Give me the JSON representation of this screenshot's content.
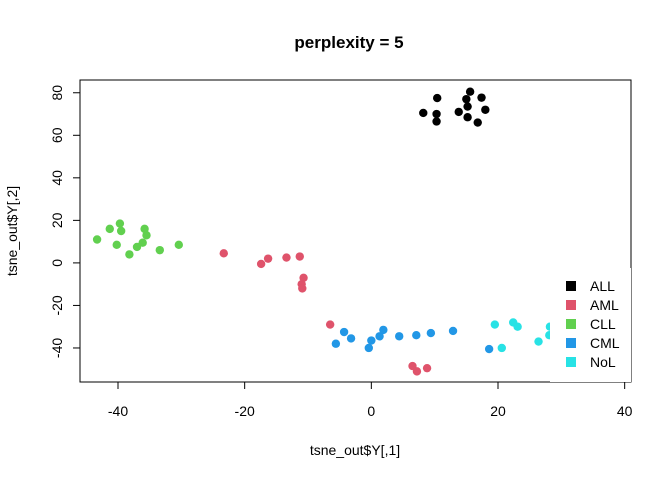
{
  "chart_data": {
    "type": "scatter",
    "title": "perplexity = 5",
    "xlabel": "tsne_out$Y[,1]",
    "ylabel": "tsne_out$Y[,2]",
    "xlim": [
      -46,
      41
    ],
    "ylim": [
      -56,
      86
    ],
    "xticks": [
      -40,
      -20,
      0,
      20,
      40
    ],
    "yticks": [
      -40,
      -20,
      0,
      20,
      40,
      60,
      80
    ],
    "grid": false,
    "legend_position": "bottom-right",
    "series": [
      {
        "name": "ALL",
        "color": "#000000",
        "points": [
          [
            8.2,
            70.5
          ],
          [
            10.4,
            77.5
          ],
          [
            10.3,
            70
          ],
          [
            10.3,
            66.5
          ],
          [
            13.8,
            71
          ],
          [
            15,
            77
          ],
          [
            15.2,
            73.5
          ],
          [
            15.6,
            80.5
          ],
          [
            15.2,
            68.5
          ],
          [
            16.8,
            66
          ],
          [
            17.4,
            77.7
          ],
          [
            18,
            72
          ]
        ]
      },
      {
        "name": "AML",
        "color": "#DF536B",
        "points": [
          [
            -23.3,
            4.5
          ],
          [
            -17.4,
            -0.5
          ],
          [
            -16.3,
            2
          ],
          [
            -13.4,
            2.5
          ],
          [
            -11.3,
            3
          ],
          [
            -10.7,
            -7
          ],
          [
            -11,
            -10
          ],
          [
            -10.9,
            -12
          ],
          [
            -6.5,
            -29
          ],
          [
            6.5,
            -48.5
          ],
          [
            7.2,
            -51
          ],
          [
            8.8,
            -49.5
          ]
        ]
      },
      {
        "name": "CLL",
        "color": "#61D04F",
        "points": [
          [
            -43.3,
            11
          ],
          [
            -41.3,
            16
          ],
          [
            -39.7,
            18.5
          ],
          [
            -39.5,
            15
          ],
          [
            -40.2,
            8.5
          ],
          [
            -38.2,
            4
          ],
          [
            -37,
            7.5
          ],
          [
            -36.1,
            9.5
          ],
          [
            -35.8,
            16
          ],
          [
            -35.5,
            13
          ],
          [
            -33.4,
            6
          ],
          [
            -30.4,
            8.5
          ]
        ]
      },
      {
        "name": "CML",
        "color": "#2297E6",
        "points": [
          [
            -5.6,
            -38
          ],
          [
            -4.3,
            -32.5
          ],
          [
            -3.2,
            -35.5
          ],
          [
            -0.4,
            -40
          ],
          [
            0,
            -36.5
          ],
          [
            1.3,
            -34.5
          ],
          [
            1.9,
            -31.5
          ],
          [
            4.4,
            -34.5
          ],
          [
            7.1,
            -34
          ],
          [
            9.4,
            -33
          ],
          [
            12.9,
            -32
          ],
          [
            18.6,
            -40.5
          ]
        ]
      },
      {
        "name": "NoL",
        "color": "#28E2E5",
        "points": [
          [
            19.5,
            -29
          ],
          [
            20.6,
            -40
          ],
          [
            22.4,
            -28
          ],
          [
            23.1,
            -30
          ],
          [
            26.4,
            -37
          ],
          [
            28.1,
            -34
          ],
          [
            28.2,
            -30
          ]
        ]
      }
    ]
  }
}
